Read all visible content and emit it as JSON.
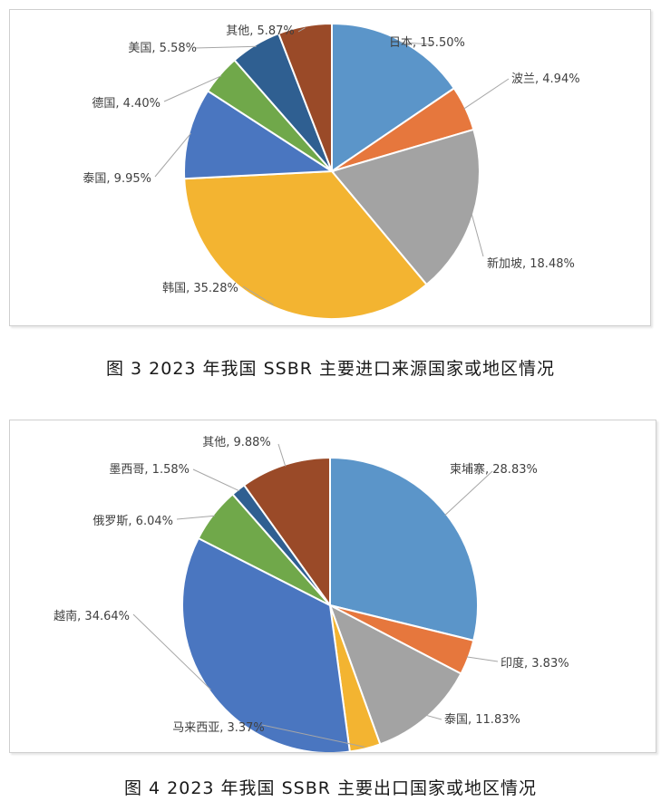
{
  "charts": [
    {
      "caption": "图 3  2023 年我国 SSBR 主要进口来源国家或地区情况",
      "chart_data": {
        "type": "pie",
        "categories": [
          "日本",
          "波兰",
          "新加坡",
          "韩国",
          "泰国",
          "德国",
          "美国",
          "其他"
        ],
        "values": [
          15.5,
          4.94,
          18.48,
          35.28,
          9.95,
          4.4,
          5.58,
          5.87
        ],
        "labels": [
          "日本, 15.50%",
          "波兰, 4.94%",
          "新加坡, 18.48%",
          "韩国, 35.28%",
          "泰国, 9.95%",
          "德国, 4.40%",
          "美国, 5.58%",
          "其他, 5.87%"
        ],
        "colors": [
          "#5b95c9",
          "#e6773d",
          "#a3a3a3",
          "#f3b431",
          "#4a76c0",
          "#70a84a",
          "#2f5f91",
          "#9a4a28"
        ],
        "start": "12 o'clock",
        "direction": "clockwise"
      }
    },
    {
      "caption": "图 4  2023 年我国 SSBR 主要出口国家或地区情况",
      "chart_data": {
        "type": "pie",
        "categories": [
          "柬埔寨",
          "印度",
          "泰国",
          "马来西亚",
          "越南",
          "俄罗斯",
          "墨西哥",
          "其他"
        ],
        "values": [
          28.83,
          3.83,
          11.83,
          3.37,
          34.64,
          6.04,
          1.58,
          9.88
        ],
        "labels": [
          "柬埔寨, 28.83%",
          "印度, 3.83%",
          "泰国, 11.83%",
          "马来西亚, 3.37%",
          "越南, 34.64%",
          "俄罗斯, 6.04%",
          "墨西哥, 1.58%",
          "其他, 9.88%"
        ],
        "colors": [
          "#5b95c9",
          "#e6773d",
          "#a3a3a3",
          "#f3b431",
          "#4a76c0",
          "#70a84a",
          "#2f5f91",
          "#9a4a28"
        ],
        "start": "12 o'clock",
        "direction": "clockwise"
      }
    }
  ]
}
